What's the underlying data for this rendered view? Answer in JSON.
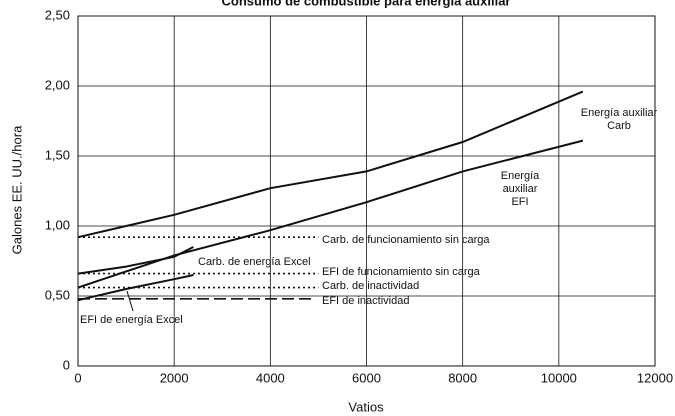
{
  "chart_data": {
    "type": "line",
    "title": "Consumo de combustible para energía auxiliar",
    "xlabel": "Vatios",
    "ylabel": "Galones EE. UU./hora",
    "xlim": [
      0,
      12000
    ],
    "xticks": [
      0,
      2000,
      4000,
      6000,
      8000,
      10000,
      12000
    ],
    "ylim": [
      0,
      2.5
    ],
    "yticks": [
      {
        "value": 0,
        "label": "0"
      },
      {
        "value": 0.5,
        "label": "0,50"
      },
      {
        "value": 1,
        "label": "1,00"
      },
      {
        "value": 1.5,
        "label": "1,50"
      },
      {
        "value": 2,
        "label": "2,00"
      },
      {
        "value": 2.5,
        "label": "2,50"
      }
    ],
    "grid": true,
    "series": [
      {
        "name": [
          "Energía auxiliar",
          "Carb"
        ],
        "style": "solid",
        "color": "#111",
        "x": [
          0,
          2000,
          4000,
          6000,
          8000,
          10500
        ],
        "values": [
          0.92,
          1.08,
          1.27,
          1.39,
          1.6,
          1.96
        ]
      },
      {
        "name": [
          "Energía",
          "auxiliar",
          "EFI"
        ],
        "style": "solid",
        "color": "#111",
        "x": [
          0,
          2000,
          4000,
          6000,
          8000,
          10500
        ],
        "values": [
          0.56,
          0.79,
          0.97,
          1.17,
          1.39,
          1.61
        ]
      },
      {
        "name": [
          "Carb. de energía Excel"
        ],
        "style": "solid",
        "color": "#111",
        "x": [
          0,
          1000,
          2000,
          2400
        ],
        "values": [
          0.66,
          0.71,
          0.78,
          0.85
        ]
      },
      {
        "name": [
          "EFI de energía Excel"
        ],
        "style": "solid",
        "color": "#111",
        "x": [
          0,
          1000,
          2000,
          2400
        ],
        "values": [
          0.47,
          0.55,
          0.62,
          0.65
        ]
      },
      {
        "name": [
          "Carb. de funcionamiento sin carga"
        ],
        "style": "dotted",
        "color": "#111",
        "x": [
          0,
          5000
        ],
        "values": [
          0.92,
          0.92
        ]
      },
      {
        "name": [
          "EFI de funcionamiento sin carga"
        ],
        "style": "dotted",
        "color": "#111",
        "x": [
          0,
          5000
        ],
        "values": [
          0.66,
          0.66
        ]
      },
      {
        "name": [
          "Carb. de inactividad"
        ],
        "style": "dotted",
        "color": "#111",
        "x": [
          0,
          5000
        ],
        "values": [
          0.56,
          0.56
        ]
      },
      {
        "name": [
          "EFI de inactividad"
        ],
        "style": "dashed",
        "color": "#111",
        "x": [
          0,
          4900
        ],
        "values": [
          0.48,
          0.48
        ]
      }
    ]
  }
}
